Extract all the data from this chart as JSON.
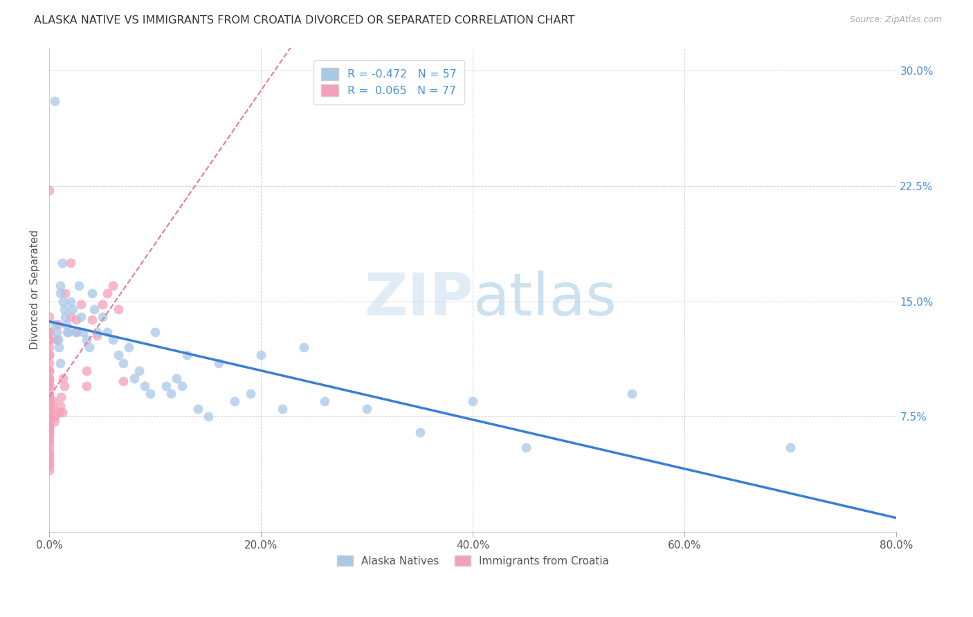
{
  "title": "ALASKA NATIVE VS IMMIGRANTS FROM CROATIA DIVORCED OR SEPARATED CORRELATION CHART",
  "source": "Source: ZipAtlas.com",
  "ylabel": "Divorced or Separated",
  "watermark_zip": "ZIP",
  "watermark_atlas": "atlas",
  "legend_label_1": "Alaska Natives",
  "legend_label_2": "Immigrants from Croatia",
  "r1": -0.472,
  "n1": 57,
  "r2": 0.065,
  "n2": 77,
  "color_blue": "#a8c8e8",
  "color_pink": "#f5a0b8",
  "trendline_blue": "#3a7fd5",
  "trendline_pink": "#e87898",
  "xmin": 0.0,
  "xmax": 0.8,
  "ymin": 0.0,
  "ymax": 0.315,
  "yticks": [
    0.075,
    0.15,
    0.225,
    0.3
  ],
  "ytick_labels": [
    "7.5%",
    "15.0%",
    "22.5%",
    "30.0%"
  ],
  "xticks": [
    0.0,
    0.2,
    0.4,
    0.6,
    0.8
  ],
  "xtick_labels": [
    "0.0%",
    "20.0%",
    "40.0%",
    "60.0%",
    "80.0%"
  ],
  "alaska_x": [
    0.005,
    0.005,
    0.007,
    0.008,
    0.009,
    0.01,
    0.01,
    0.01,
    0.012,
    0.013,
    0.014,
    0.015,
    0.016,
    0.017,
    0.018,
    0.02,
    0.022,
    0.025,
    0.028,
    0.03,
    0.032,
    0.035,
    0.038,
    0.04,
    0.042,
    0.045,
    0.05,
    0.055,
    0.06,
    0.065,
    0.07,
    0.075,
    0.08,
    0.085,
    0.09,
    0.095,
    0.1,
    0.11,
    0.115,
    0.12,
    0.125,
    0.13,
    0.14,
    0.15,
    0.16,
    0.175,
    0.19,
    0.2,
    0.22,
    0.24,
    0.26,
    0.3,
    0.35,
    0.4,
    0.45,
    0.55,
    0.7
  ],
  "alaska_y": [
    0.135,
    0.28,
    0.13,
    0.125,
    0.12,
    0.16,
    0.155,
    0.11,
    0.175,
    0.15,
    0.145,
    0.14,
    0.135,
    0.13,
    0.13,
    0.15,
    0.145,
    0.13,
    0.16,
    0.14,
    0.13,
    0.125,
    0.12,
    0.155,
    0.145,
    0.13,
    0.14,
    0.13,
    0.125,
    0.115,
    0.11,
    0.12,
    0.1,
    0.105,
    0.095,
    0.09,
    0.13,
    0.095,
    0.09,
    0.1,
    0.095,
    0.115,
    0.08,
    0.075,
    0.11,
    0.085,
    0.09,
    0.115,
    0.08,
    0.12,
    0.085,
    0.08,
    0.065,
    0.085,
    0.055,
    0.09,
    0.055
  ],
  "croatia_x": [
    0.0,
    0.0,
    0.0,
    0.0,
    0.0,
    0.0,
    0.0,
    0.0,
    0.0,
    0.0,
    0.0,
    0.0,
    0.0,
    0.0,
    0.0,
    0.0,
    0.0,
    0.0,
    0.0,
    0.0,
    0.0,
    0.0,
    0.0,
    0.0,
    0.0,
    0.0,
    0.0,
    0.0,
    0.0,
    0.0,
    0.0,
    0.0,
    0.0,
    0.0,
    0.0,
    0.0,
    0.0,
    0.0,
    0.0,
    0.0,
    0.0,
    0.0,
    0.0,
    0.0,
    0.0,
    0.0,
    0.0,
    0.0,
    0.0,
    0.0,
    0.003,
    0.004,
    0.005,
    0.005,
    0.007,
    0.008,
    0.009,
    0.01,
    0.011,
    0.012,
    0.013,
    0.014,
    0.015,
    0.02,
    0.02,
    0.025,
    0.025,
    0.03,
    0.035,
    0.035,
    0.04,
    0.045,
    0.05,
    0.055,
    0.06,
    0.065,
    0.07
  ],
  "croatia_y": [
    0.13,
    0.125,
    0.12,
    0.115,
    0.11,
    0.105,
    0.1,
    0.098,
    0.095,
    0.09,
    0.088,
    0.085,
    0.082,
    0.08,
    0.078,
    0.075,
    0.072,
    0.07,
    0.068,
    0.065,
    0.062,
    0.06,
    0.058,
    0.055,
    0.052,
    0.05,
    0.048,
    0.045,
    0.043,
    0.04,
    0.082,
    0.078,
    0.095,
    0.088,
    0.085,
    0.1,
    0.072,
    0.068,
    0.065,
    0.14,
    0.13,
    0.125,
    0.115,
    0.105,
    0.085,
    0.08,
    0.222,
    0.075,
    0.07,
    0.068,
    0.08,
    0.085,
    0.075,
    0.072,
    0.125,
    0.135,
    0.078,
    0.082,
    0.088,
    0.078,
    0.1,
    0.095,
    0.155,
    0.14,
    0.175,
    0.13,
    0.138,
    0.148,
    0.095,
    0.105,
    0.138,
    0.128,
    0.148,
    0.155,
    0.16,
    0.145,
    0.098
  ]
}
